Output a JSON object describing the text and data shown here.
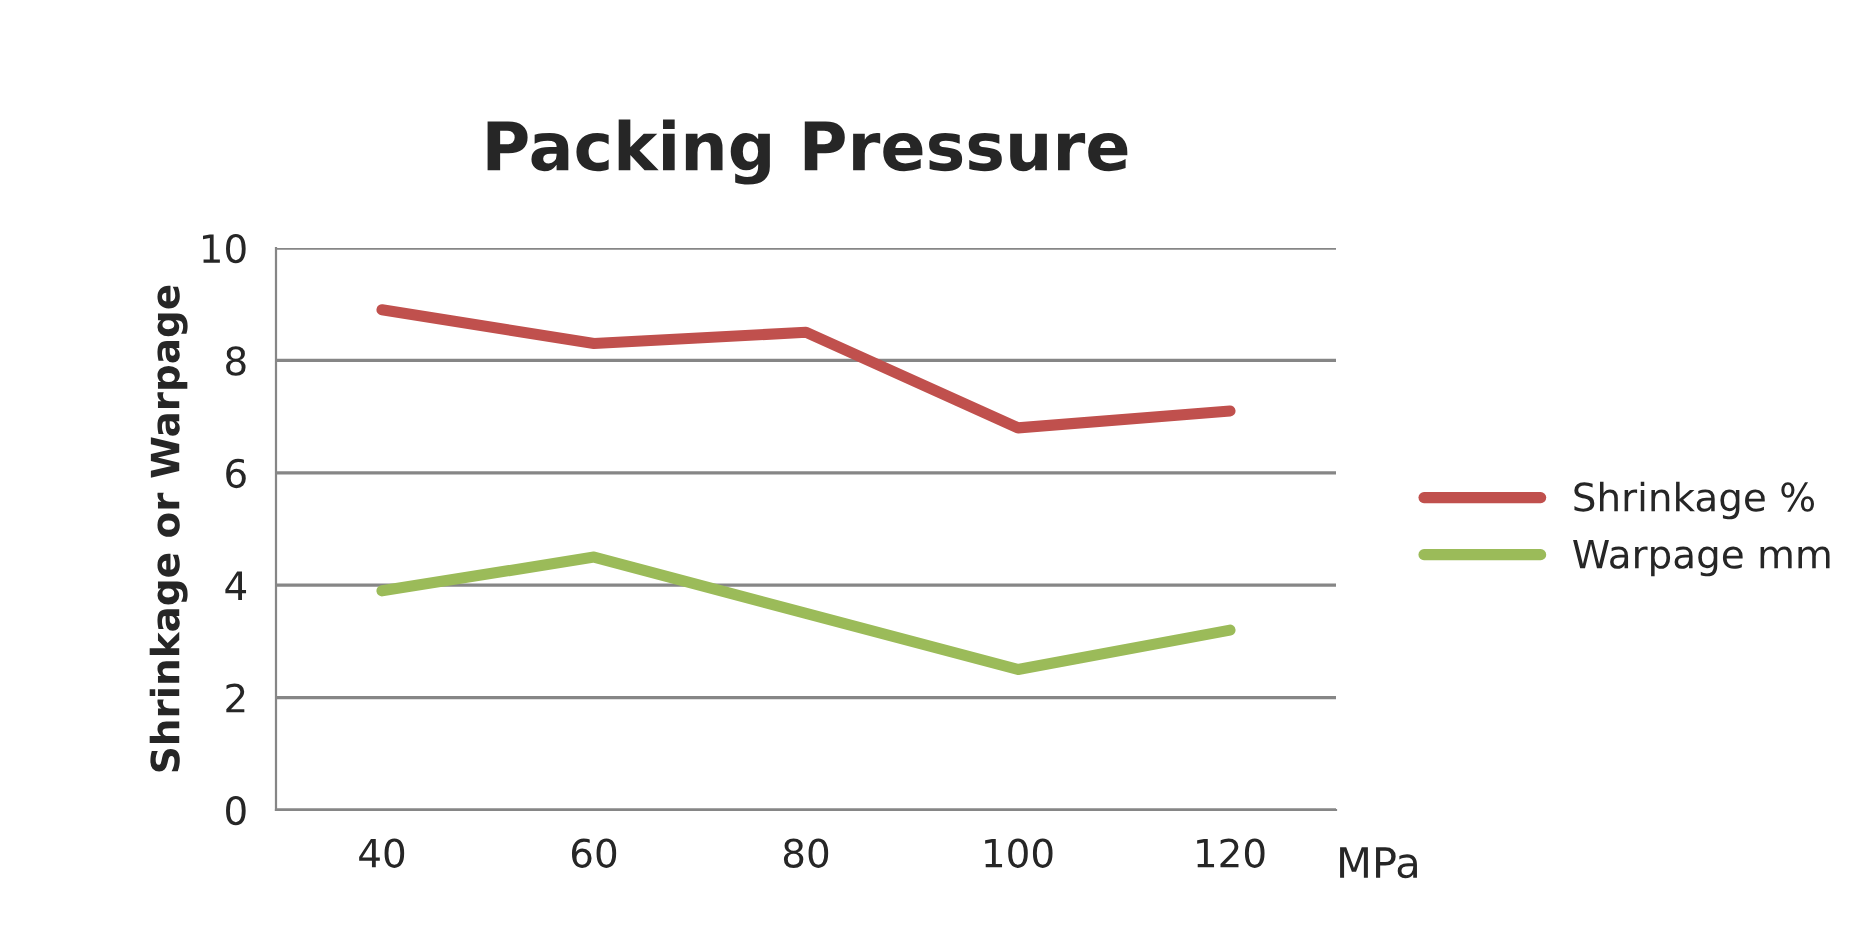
{
  "chart_data": {
    "type": "line",
    "title": "Packing Pressure",
    "xlabel": "MPa",
    "ylabel": "Shrinkage or Warpage",
    "categories": [
      "40",
      "60",
      "80",
      "100",
      "120"
    ],
    "series": [
      {
        "name": "Shrinkage %",
        "color": "#c0504d",
        "values": [
          8.9,
          8.3,
          8.5,
          6.8,
          7.1
        ]
      },
      {
        "name": "Warpage mm",
        "color": "#9bbb59",
        "values": [
          3.9,
          4.5,
          3.5,
          2.5,
          3.2
        ]
      }
    ],
    "ylim": [
      0,
      10
    ],
    "yticks": [
      0,
      2,
      4,
      6,
      8,
      10
    ],
    "grid": "y",
    "legend": "right",
    "marker": "none",
    "line_style": "solid"
  }
}
